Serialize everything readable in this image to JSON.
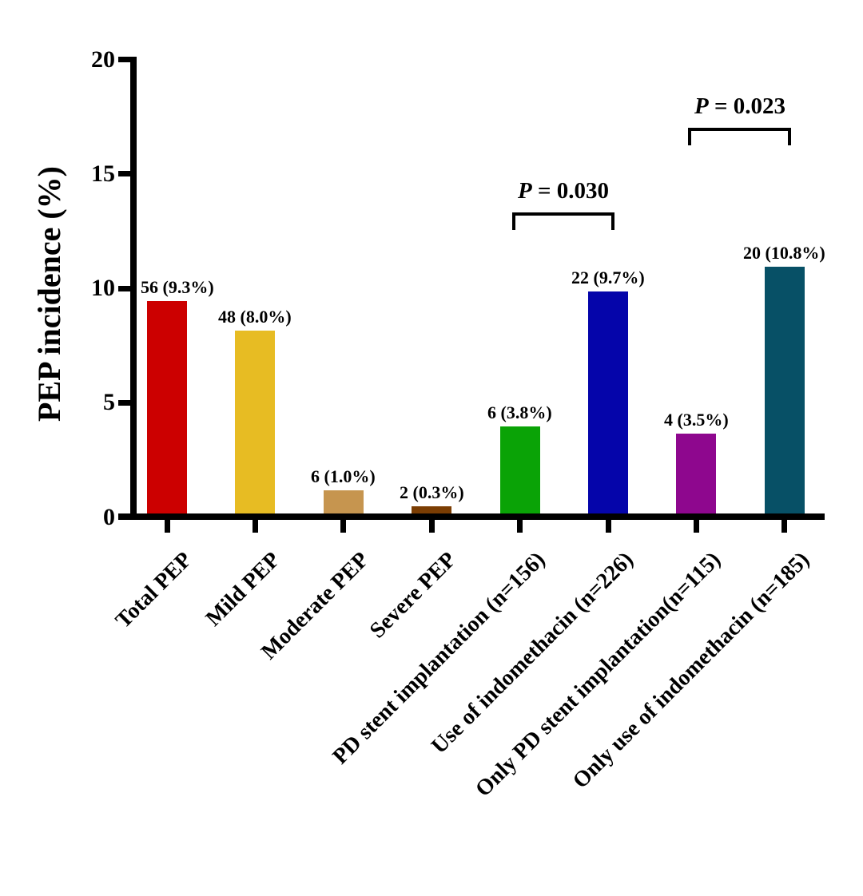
{
  "chart_data": {
    "type": "bar",
    "title": "",
    "ylabel": "PEP incidence (%)",
    "xlabel": "",
    "ylim": [
      0,
      20
    ],
    "yticks": [
      0,
      5,
      10,
      15,
      20
    ],
    "grid": false,
    "legend": null,
    "categories": [
      "Total PEP",
      "Mild PEP",
      "Moderate PEP",
      "Severe PEP",
      "PD stent implantation (n=156)",
      "Use of indomethacin (n=226)",
      "Only PD stent implantation(n=115)",
      "Only use of indomethacin (n=185)"
    ],
    "counts": [
      56,
      48,
      6,
      2,
      6,
      22,
      4,
      20
    ],
    "values": [
      9.3,
      8.0,
      1.0,
      0.3,
      3.8,
      9.7,
      3.5,
      10.8
    ],
    "bar_labels": [
      "56 (9.3%)",
      "48 (8.0%)",
      "6 (1.0%)",
      "2 (0.3%)",
      "6 (3.8%)",
      "22 (9.7%)",
      "4 (3.5%)",
      "20 (10.8%)"
    ],
    "colors": [
      "#cc0000",
      "#e7bc23",
      "#c6954f",
      "#7b3d03",
      "#0aa306",
      "#0505aa",
      "#8e078e",
      "#075066"
    ],
    "axis_color": "#000000",
    "annotations": [
      {
        "p_italic": "P",
        "p_rest": " = 0.030",
        "between": [
          4,
          5
        ],
        "bracket_y_pct": 13.3
      },
      {
        "p_italic": "P",
        "p_rest": " = 0.023",
        "between": [
          6,
          7
        ],
        "bracket_y_pct": 17.0
      }
    ]
  }
}
